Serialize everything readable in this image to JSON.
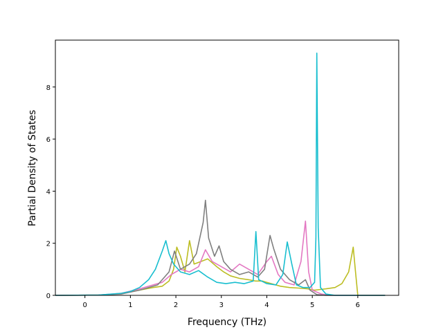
{
  "chart_data": {
    "type": "line",
    "xlabel": "Frequency (THz)",
    "ylabel": "Partial Density of States",
    "xlim": [
      -0.65,
      6.9
    ],
    "ylim": [
      0,
      9.8
    ],
    "x_ticks": [
      0,
      1,
      2,
      3,
      4,
      5,
      6
    ],
    "y_ticks": [
      0,
      2,
      4,
      6,
      8
    ],
    "grid": false,
    "legend": "none",
    "series": [
      {
        "color": "#bcbd22",
        "points": [
          [
            -0.65,
            0
          ],
          [
            0.3,
            0.01
          ],
          [
            0.8,
            0.06
          ],
          [
            1.2,
            0.2
          ],
          [
            1.5,
            0.3
          ],
          [
            1.7,
            0.35
          ],
          [
            1.85,
            0.55
          ],
          [
            1.95,
            1.0
          ],
          [
            2.02,
            1.85
          ],
          [
            2.1,
            1.5
          ],
          [
            2.2,
            0.9
          ],
          [
            2.3,
            2.1
          ],
          [
            2.4,
            1.2
          ],
          [
            2.55,
            1.3
          ],
          [
            2.7,
            1.4
          ],
          [
            2.9,
            1.1
          ],
          [
            3.05,
            0.9
          ],
          [
            3.2,
            0.75
          ],
          [
            3.4,
            0.65
          ],
          [
            3.6,
            0.6
          ],
          [
            3.75,
            0.55
          ],
          [
            3.9,
            0.55
          ],
          [
            4.1,
            0.45
          ],
          [
            4.3,
            0.35
          ],
          [
            4.5,
            0.3
          ],
          [
            4.7,
            0.28
          ],
          [
            4.9,
            0.25
          ],
          [
            5.05,
            0.2
          ],
          [
            5.3,
            0.25
          ],
          [
            5.5,
            0.3
          ],
          [
            5.65,
            0.45
          ],
          [
            5.8,
            0.9
          ],
          [
            5.9,
            1.85
          ],
          [
            5.95,
            0.9
          ],
          [
            6.0,
            0
          ],
          [
            6.6,
            0
          ]
        ]
      },
      {
        "color": "#e377c2",
        "points": [
          [
            -0.65,
            0
          ],
          [
            0.3,
            0.01
          ],
          [
            0.8,
            0.08
          ],
          [
            1.2,
            0.25
          ],
          [
            1.5,
            0.4
          ],
          [
            1.7,
            0.5
          ],
          [
            1.9,
            0.8
          ],
          [
            2.1,
            1.0
          ],
          [
            2.3,
            0.9
          ],
          [
            2.5,
            1.1
          ],
          [
            2.65,
            1.75
          ],
          [
            2.8,
            1.3
          ],
          [
            3.0,
            1.1
          ],
          [
            3.2,
            0.9
          ],
          [
            3.4,
            1.2
          ],
          [
            3.6,
            1.0
          ],
          [
            3.8,
            0.8
          ],
          [
            4.0,
            1.3
          ],
          [
            4.1,
            1.5
          ],
          [
            4.25,
            0.8
          ],
          [
            4.4,
            0.5
          ],
          [
            4.6,
            0.4
          ],
          [
            4.75,
            1.3
          ],
          [
            4.85,
            2.85
          ],
          [
            4.92,
            0.9
          ],
          [
            5.0,
            0.2
          ],
          [
            5.2,
            0.05
          ],
          [
            5.4,
            0
          ],
          [
            6.6,
            0
          ]
        ]
      },
      {
        "color": "#7f7f7f",
        "points": [
          [
            -0.65,
            0
          ],
          [
            0.3,
            0.01
          ],
          [
            0.8,
            0.05
          ],
          [
            1.2,
            0.2
          ],
          [
            1.6,
            0.4
          ],
          [
            1.85,
            0.9
          ],
          [
            1.97,
            1.7
          ],
          [
            2.1,
            1.0
          ],
          [
            2.3,
            1.2
          ],
          [
            2.45,
            1.6
          ],
          [
            2.6,
            2.8
          ],
          [
            2.65,
            3.65
          ],
          [
            2.72,
            2.2
          ],
          [
            2.85,
            1.5
          ],
          [
            2.95,
            1.9
          ],
          [
            3.05,
            1.3
          ],
          [
            3.2,
            1.0
          ],
          [
            3.4,
            0.8
          ],
          [
            3.6,
            0.9
          ],
          [
            3.8,
            0.7
          ],
          [
            3.95,
            1.0
          ],
          [
            4.07,
            2.3
          ],
          [
            4.15,
            1.8
          ],
          [
            4.3,
            1.0
          ],
          [
            4.5,
            0.6
          ],
          [
            4.7,
            0.4
          ],
          [
            4.85,
            0.6
          ],
          [
            4.95,
            0.2
          ],
          [
            5.1,
            0.03
          ],
          [
            5.3,
            0
          ],
          [
            6.6,
            0
          ]
        ]
      },
      {
        "color": "#17becf",
        "points": [
          [
            -0.65,
            0
          ],
          [
            0.3,
            0.01
          ],
          [
            0.8,
            0.08
          ],
          [
            1.0,
            0.15
          ],
          [
            1.2,
            0.3
          ],
          [
            1.4,
            0.6
          ],
          [
            1.55,
            1.0
          ],
          [
            1.7,
            1.7
          ],
          [
            1.78,
            2.1
          ],
          [
            1.85,
            1.6
          ],
          [
            1.95,
            1.2
          ],
          [
            2.1,
            0.9
          ],
          [
            2.3,
            0.8
          ],
          [
            2.5,
            0.95
          ],
          [
            2.7,
            0.7
          ],
          [
            2.9,
            0.5
          ],
          [
            3.1,
            0.45
          ],
          [
            3.3,
            0.5
          ],
          [
            3.5,
            0.45
          ],
          [
            3.7,
            0.55
          ],
          [
            3.76,
            2.45
          ],
          [
            3.82,
            0.6
          ],
          [
            4.0,
            0.45
          ],
          [
            4.2,
            0.4
          ],
          [
            4.35,
            0.8
          ],
          [
            4.45,
            2.05
          ],
          [
            4.55,
            1.2
          ],
          [
            4.65,
            0.4
          ],
          [
            4.8,
            0.3
          ],
          [
            4.95,
            0.3
          ],
          [
            5.05,
            0.5
          ],
          [
            5.08,
            2.2
          ],
          [
            5.1,
            9.3
          ],
          [
            5.13,
            2.6
          ],
          [
            5.18,
            0.3
          ],
          [
            5.3,
            0.05
          ],
          [
            5.5,
            0
          ],
          [
            6.6,
            0
          ]
        ]
      }
    ]
  }
}
